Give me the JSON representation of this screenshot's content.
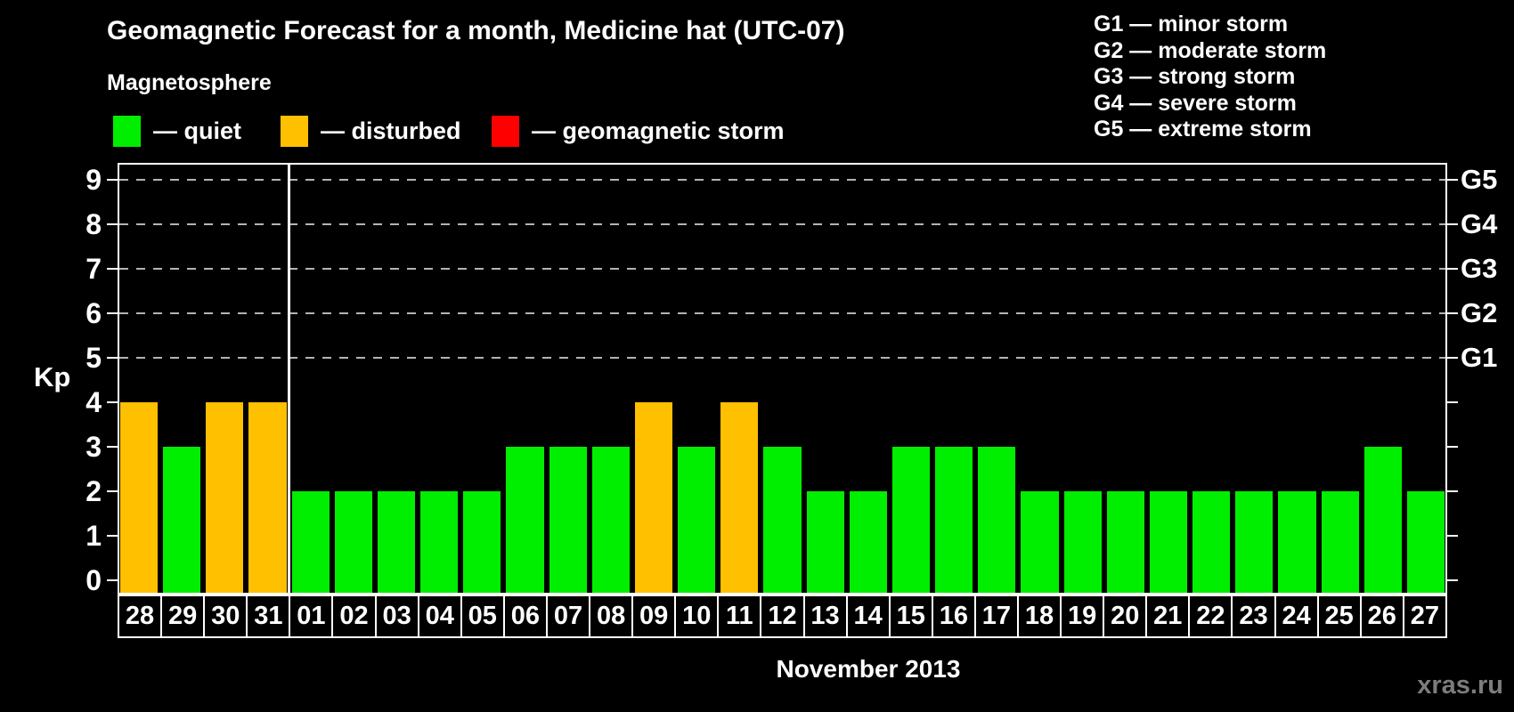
{
  "header": {
    "title": "Geomagnetic Forecast for a month, Medicine hat (UTC-07)",
    "subtitle": "Magnetosphere"
  },
  "legend": {
    "items": [
      {
        "key": "quiet",
        "color": "#00ee00",
        "label": "— quiet"
      },
      {
        "key": "disturbed",
        "color": "#ffc000",
        "label": "— disturbed"
      },
      {
        "key": "storm",
        "color": "#ff0000",
        "label": "— geomagnetic storm"
      }
    ]
  },
  "storm_scale": {
    "items": [
      {
        "code": "G1",
        "kp": 5,
        "label": "G1 — minor storm"
      },
      {
        "code": "G2",
        "kp": 6,
        "label": "G2 — moderate storm"
      },
      {
        "code": "G3",
        "kp": 7,
        "label": "G3 — strong storm"
      },
      {
        "code": "G4",
        "kp": 8,
        "label": "G4 — severe storm"
      },
      {
        "code": "G5",
        "kp": 9,
        "label": "G5 — extreme storm"
      }
    ]
  },
  "axes": {
    "y_title": "Kp",
    "y_ticks": [
      0,
      1,
      2,
      3,
      4,
      5,
      6,
      7,
      8,
      9
    ],
    "x_title": "November 2013"
  },
  "watermark": "xras.ru",
  "chart_data": {
    "type": "bar",
    "title": "Geomagnetic Forecast for a month, Medicine hat (UTC-07)",
    "xlabel": "November 2013",
    "ylabel": "Kp",
    "ylim": [
      0,
      9.4
    ],
    "grid": "dashed horizontal at Kp 5-9",
    "gridline_kp": [
      5,
      6,
      7,
      8,
      9
    ],
    "categories": [
      "28",
      "29",
      "30",
      "31",
      "01",
      "02",
      "03",
      "04",
      "05",
      "06",
      "07",
      "08",
      "09",
      "10",
      "11",
      "12",
      "13",
      "14",
      "15",
      "16",
      "17",
      "18",
      "19",
      "20",
      "21",
      "22",
      "23",
      "24",
      "25",
      "26",
      "27"
    ],
    "values": [
      4,
      3,
      4,
      4,
      2,
      2,
      2,
      2,
      2,
      3,
      3,
      3,
      4,
      3,
      4,
      3,
      2,
      2,
      3,
      3,
      3,
      2,
      2,
      2,
      2,
      2,
      2,
      2,
      2,
      3,
      2
    ],
    "statuses": [
      "disturbed",
      "quiet",
      "disturbed",
      "disturbed",
      "quiet",
      "quiet",
      "quiet",
      "quiet",
      "quiet",
      "quiet",
      "quiet",
      "quiet",
      "disturbed",
      "quiet",
      "disturbed",
      "quiet",
      "quiet",
      "quiet",
      "quiet",
      "quiet",
      "quiet",
      "quiet",
      "quiet",
      "quiet",
      "quiet",
      "quiet",
      "quiet",
      "quiet",
      "quiet",
      "quiet",
      "quiet"
    ],
    "colors": {
      "quiet": "#00ee00",
      "disturbed": "#ffc000",
      "storm": "#ff0000"
    },
    "november_start_index": 4
  }
}
